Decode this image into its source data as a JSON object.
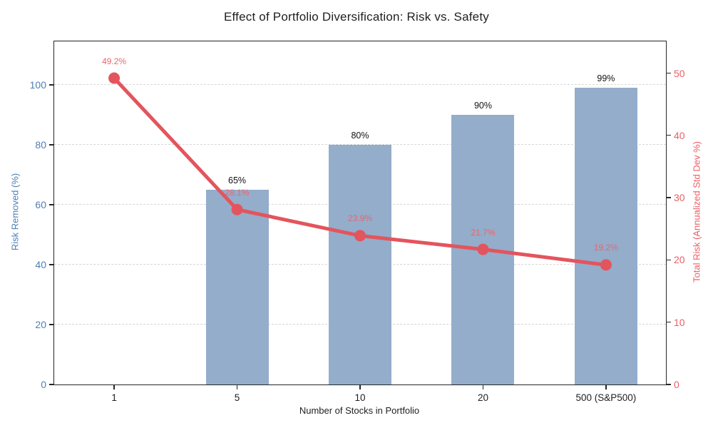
{
  "title": "Effect of Portfolio Diversification: Risk vs. Safety",
  "colors": {
    "bar": "#93adcb",
    "line": "#e4545c",
    "left_axis_text": "#4f7fb5",
    "right_axis_text": "#ec5f66",
    "bar_label_text": "#111111",
    "point_label_text": "#e9666c",
    "grid": "#d7d7d7",
    "spine": "#262626"
  },
  "chart_data": {
    "type": "bar",
    "subtype": "combo bar+line, dual y-axis",
    "title": "Effect of Portfolio Diversification: Risk vs. Safety",
    "categories": [
      "1",
      "5",
      "10",
      "20",
      "500 (S&P500)"
    ],
    "series": [
      {
        "name": "Risk Removed (%)",
        "type": "bar",
        "axis": "left",
        "values": [
          0,
          65,
          80,
          90,
          99
        ],
        "labels": [
          "",
          "65%",
          "80%",
          "90%",
          "99%"
        ]
      },
      {
        "name": "Total Risk (Annualized Std Dev %)",
        "type": "line",
        "axis": "right",
        "values": [
          49.2,
          28.1,
          23.9,
          21.7,
          19.2
        ],
        "labels": [
          "49.2%",
          "28.1%",
          "23.9%",
          "21.7%",
          "19.2%"
        ]
      }
    ],
    "xlabel": "Number of Stocks in Portfolio",
    "ylabel_left": "Risk Removed (%)",
    "ylabel_right": "Total Risk (Annualized Std Dev %)",
    "left_ticks": [
      0,
      20,
      40,
      60,
      80,
      100
    ],
    "right_ticks": [
      0,
      10,
      20,
      30,
      40,
      50
    ],
    "left_ylim": [
      0,
      114.5
    ],
    "right_ylim": [
      0,
      55.1
    ],
    "grid": "horizontal dashed",
    "legend_position": "none"
  }
}
